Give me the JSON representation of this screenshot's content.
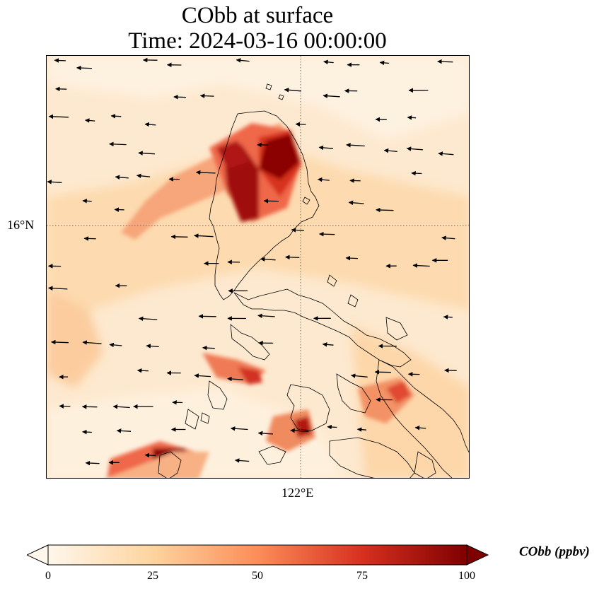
{
  "title": {
    "line1": "CObb at surface",
    "line2": "Time: 2024-03-16 00:00:00"
  },
  "axes": {
    "lat_tick": "16°N",
    "lon_tick": "122°E"
  },
  "colorbar": {
    "label": "CObb (ppbv)",
    "ticks": [
      "0",
      "25",
      "50",
      "75",
      "100"
    ],
    "range": [
      0,
      100
    ],
    "colormap": "OrRd",
    "colors": [
      "#fff7ec",
      "#fdd49e",
      "#fc8d59",
      "#d7301f",
      "#7f0000"
    ],
    "extend": "both"
  }
}
